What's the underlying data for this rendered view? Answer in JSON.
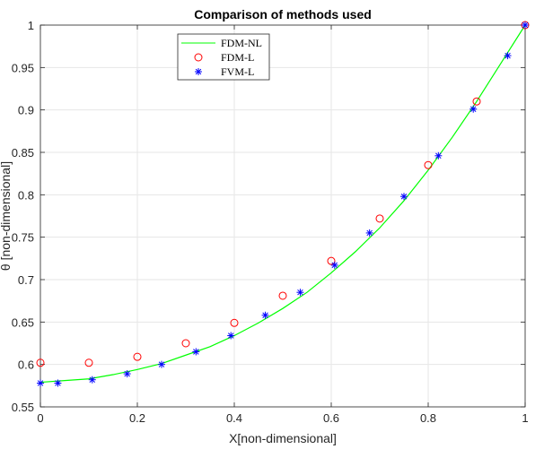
{
  "chart_data": {
    "type": "line",
    "title": "Comparison of methods used",
    "xlabel": "X[non-dimensional]",
    "ylabel": "θ  [non-dimensional]",
    "xlim": [
      0,
      1
    ],
    "ylim": [
      0.55,
      1
    ],
    "xticks": [
      "0",
      "0.2",
      "0.4",
      "0.6",
      "0.8",
      "1"
    ],
    "yticks": [
      "0.55",
      "0.6",
      "0.65",
      "0.7",
      "0.75",
      "0.8",
      "0.85",
      "0.9",
      "0.95",
      "1"
    ],
    "grid": true,
    "legend_placement": "top-left",
    "series": [
      {
        "name": "FDM-NL",
        "style": "line",
        "color": "#00ff00",
        "x": [
          0,
          0.05,
          0.1,
          0.15,
          0.2,
          0.25,
          0.3,
          0.35,
          0.4,
          0.45,
          0.5,
          0.55,
          0.6,
          0.65,
          0.7,
          0.75,
          0.8,
          0.85,
          0.9,
          0.95,
          1
        ],
        "y": [
          0.579,
          0.581,
          0.583,
          0.588,
          0.594,
          0.601,
          0.611,
          0.621,
          0.634,
          0.649,
          0.666,
          0.685,
          0.708,
          0.733,
          0.761,
          0.793,
          0.829,
          0.868,
          0.91,
          0.955,
          1.0
        ]
      },
      {
        "name": "FDM-L",
        "style": "circle",
        "color": "#ff0000",
        "x": [
          0,
          0.1,
          0.2,
          0.3,
          0.4,
          0.5,
          0.6,
          0.7,
          0.8,
          0.9,
          1
        ],
        "y": [
          0.602,
          0.602,
          0.609,
          0.625,
          0.649,
          0.681,
          0.722,
          0.772,
          0.835,
          0.91,
          1.0
        ]
      },
      {
        "name": "FVM-L",
        "style": "asterisk",
        "color": "#0000ff",
        "x": [
          0,
          0.036,
          0.107,
          0.179,
          0.25,
          0.321,
          0.393,
          0.464,
          0.536,
          0.607,
          0.679,
          0.75,
          0.821,
          0.893,
          0.964,
          1
        ],
        "y": [
          0.578,
          0.578,
          0.582,
          0.589,
          0.6,
          0.615,
          0.634,
          0.658,
          0.685,
          0.717,
          0.755,
          0.798,
          0.846,
          0.901,
          0.964,
          1.0
        ]
      }
    ]
  }
}
